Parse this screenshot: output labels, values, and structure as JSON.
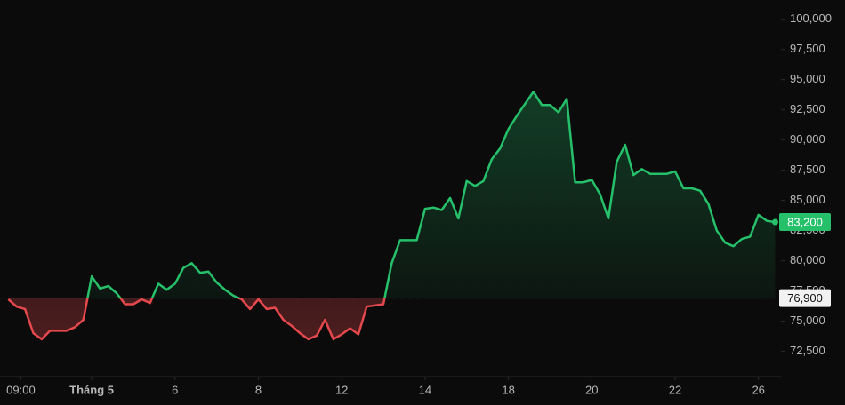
{
  "chart_data": {
    "type": "line",
    "values": [
      76800,
      76200,
      76000,
      74000,
      73500,
      74200,
      74200,
      74200,
      74500,
      75100,
      78700,
      77700,
      77900,
      77300,
      76400,
      76400,
      76800,
      76500,
      78100,
      77600,
      78100,
      79400,
      79800,
      79000,
      79100,
      78200,
      77600,
      77100,
      76800,
      76000,
      76800,
      76000,
      76100,
      75100,
      74600,
      74000,
      73500,
      73800,
      75100,
      73500,
      73900,
      74400,
      73900,
      76200,
      76300,
      76400,
      79800,
      81700,
      81700,
      81700,
      84300,
      84400,
      84200,
      85200,
      83500,
      86600,
      86200,
      86600,
      88400,
      89300,
      90900,
      92000,
      93000,
      94000,
      92900,
      92900,
      92300,
      93400,
      86500,
      86500,
      86700,
      85500,
      83500,
      88200,
      89600,
      87100,
      87600,
      87200,
      87200,
      87200,
      87400,
      86000,
      86000,
      85800,
      84700,
      82500,
      81500,
      81200,
      81800,
      82000,
      83800,
      83300,
      83200
    ],
    "up_color": "#26c06b",
    "down_color": "#e5484d",
    "baseline": {
      "value": 76900,
      "label": "76,900"
    },
    "last_price": {
      "value": 83200,
      "label": "83,200"
    },
    "ylim": [
      70400,
      101600
    ],
    "yticks": [
      {
        "value": 72500,
        "label": "72,500"
      },
      {
        "value": 75000,
        "label": "75,000"
      },
      {
        "value": 77500,
        "label": "77,500"
      },
      {
        "value": 80000,
        "label": "80,000"
      },
      {
        "value": 82500,
        "label": "82,500"
      },
      {
        "value": 85000,
        "label": "85,000"
      },
      {
        "value": 87500,
        "label": "87,500"
      },
      {
        "value": 90000,
        "label": "90,000"
      },
      {
        "value": 92500,
        "label": "92,500"
      },
      {
        "value": 95000,
        "label": "95,000"
      },
      {
        "value": 97500,
        "label": "97,500"
      },
      {
        "value": 100000,
        "label": "100,000"
      }
    ],
    "xlim": [
      -1,
      92.7
    ],
    "xticks": [
      {
        "value": 1.5,
        "label": "09:00"
      },
      {
        "value": 10,
        "label": "Tháng 5"
      },
      {
        "value": 20,
        "label": "6"
      },
      {
        "value": 30,
        "label": "8"
      },
      {
        "value": 40,
        "label": "12"
      },
      {
        "value": 50,
        "label": "14"
      },
      {
        "value": 60,
        "label": "18"
      },
      {
        "value": 70,
        "label": "20"
      },
      {
        "value": 80,
        "label": "22"
      },
      {
        "value": 90,
        "label": "26"
      }
    ]
  }
}
